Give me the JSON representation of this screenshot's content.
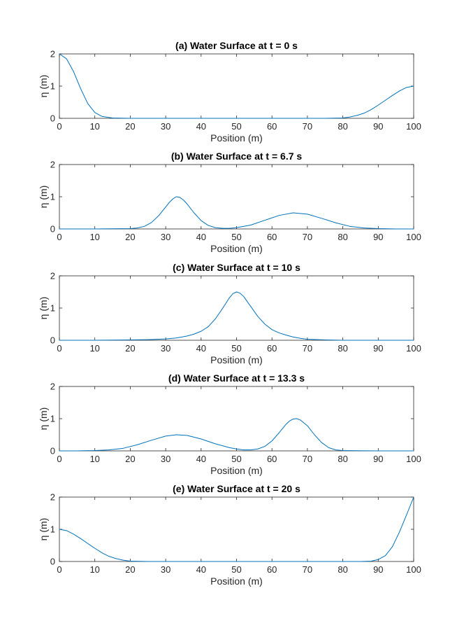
{
  "colors": {
    "line": "#0072BD",
    "axis": "#262626",
    "background": "#ffffff"
  },
  "chart_data": [
    {
      "type": "line",
      "title": "(a) Water Surface at t = 0 s",
      "xlabel": "Position (m)",
      "ylabel": "η (m)",
      "xlim": [
        0,
        100
      ],
      "ylim": [
        0,
        2
      ],
      "xticks": [
        0,
        10,
        20,
        30,
        40,
        50,
        60,
        70,
        80,
        90,
        100
      ],
      "xtick_labels": [
        "0",
        "10",
        "20",
        "30",
        "40",
        "50",
        "60",
        "70",
        "80",
        "90",
        "100"
      ],
      "yticks": [
        0,
        1,
        2
      ],
      "ytick_labels": [
        "0",
        "1",
        "2"
      ],
      "grid": false,
      "series": [
        {
          "x": [
            0,
            2,
            4,
            6,
            8,
            10,
            12,
            15,
            20,
            30,
            40,
            50,
            60,
            70,
            75,
            80,
            82,
            84,
            86,
            88,
            90,
            92,
            94,
            96,
            98,
            100
          ],
          "y": [
            2.0,
            1.85,
            1.45,
            0.92,
            0.46,
            0.18,
            0.06,
            0.01,
            0,
            0,
            0,
            0,
            0,
            0,
            0,
            0.01,
            0.04,
            0.09,
            0.16,
            0.27,
            0.41,
            0.56,
            0.71,
            0.85,
            0.96,
            1.0
          ]
        }
      ]
    },
    {
      "type": "line",
      "title": "(b) Water Surface at t = 6.7 s",
      "xlabel": "Position (m)",
      "ylabel": "η (m)",
      "xlim": [
        0,
        100
      ],
      "ylim": [
        0,
        2
      ],
      "xticks": [
        0,
        10,
        20,
        30,
        40,
        50,
        60,
        70,
        80,
        90,
        100
      ],
      "xtick_labels": [
        "0",
        "10",
        "20",
        "30",
        "40",
        "50",
        "60",
        "70",
        "80",
        "90",
        "100"
      ],
      "yticks": [
        0,
        1,
        2
      ],
      "ytick_labels": [
        "0",
        "1",
        "2"
      ],
      "grid": false,
      "series": [
        {
          "x": [
            0,
            10,
            20,
            22,
            24,
            26,
            28,
            30,
            31,
            32,
            33,
            34,
            35,
            36,
            38,
            40,
            42,
            44,
            46,
            48,
            50,
            54,
            58,
            62,
            66,
            70,
            74,
            78,
            82,
            86,
            90,
            95,
            100
          ],
          "y": [
            0,
            0,
            0.01,
            0.03,
            0.08,
            0.2,
            0.41,
            0.68,
            0.82,
            0.93,
            1.0,
            0.98,
            0.9,
            0.78,
            0.5,
            0.26,
            0.11,
            0.04,
            0.02,
            0.02,
            0.04,
            0.12,
            0.27,
            0.42,
            0.5,
            0.46,
            0.33,
            0.19,
            0.08,
            0.03,
            0.01,
            0,
            0
          ]
        }
      ]
    },
    {
      "type": "line",
      "title": "(c) Water Surface at t = 10 s",
      "xlabel": "Position (m)",
      "ylabel": "η (m)",
      "xlim": [
        0,
        100
      ],
      "ylim": [
        0,
        2
      ],
      "xticks": [
        0,
        10,
        20,
        30,
        40,
        50,
        60,
        70,
        80,
        90,
        100
      ],
      "xtick_labels": [
        "0",
        "10",
        "20",
        "30",
        "40",
        "50",
        "60",
        "70",
        "80",
        "90",
        "100"
      ],
      "yticks": [
        0,
        1,
        2
      ],
      "ytick_labels": [
        "0",
        "1",
        "2"
      ],
      "grid": false,
      "series": [
        {
          "x": [
            0,
            10,
            20,
            25,
            30,
            33,
            36,
            38,
            40,
            42,
            44,
            46,
            48,
            49,
            50,
            51,
            52,
            54,
            56,
            58,
            60,
            62,
            64,
            66,
            68,
            70,
            75,
            80,
            90,
            100
          ],
          "y": [
            0,
            0,
            0.01,
            0.02,
            0.04,
            0.07,
            0.13,
            0.19,
            0.28,
            0.42,
            0.66,
            0.98,
            1.32,
            1.45,
            1.5,
            1.46,
            1.36,
            1.05,
            0.74,
            0.5,
            0.33,
            0.23,
            0.16,
            0.1,
            0.06,
            0.03,
            0.01,
            0,
            0,
            0
          ]
        }
      ]
    },
    {
      "type": "line",
      "title": "(d) Water Surface at t = 13.3 s",
      "xlabel": "Position (m)",
      "ylabel": "η (m)",
      "xlim": [
        0,
        100
      ],
      "ylim": [
        0,
        2
      ],
      "xticks": [
        0,
        10,
        20,
        30,
        40,
        50,
        60,
        70,
        80,
        90,
        100
      ],
      "xtick_labels": [
        "0",
        "10",
        "20",
        "30",
        "40",
        "50",
        "60",
        "70",
        "80",
        "90",
        "100"
      ],
      "yticks": [
        0,
        1,
        2
      ],
      "ytick_labels": [
        "0",
        "1",
        "2"
      ],
      "grid": false,
      "series": [
        {
          "x": [
            0,
            5,
            10,
            14,
            18,
            22,
            26,
            30,
            33,
            36,
            40,
            44,
            48,
            50,
            52,
            54,
            56,
            58,
            60,
            62,
            64,
            65,
            66,
            67,
            68,
            70,
            72,
            74,
            76,
            78,
            80,
            90,
            100
          ],
          "y": [
            0,
            0,
            0.01,
            0.03,
            0.08,
            0.19,
            0.33,
            0.46,
            0.5,
            0.48,
            0.37,
            0.22,
            0.1,
            0.06,
            0.03,
            0.03,
            0.06,
            0.14,
            0.31,
            0.56,
            0.83,
            0.93,
            0.99,
            1.0,
            0.96,
            0.78,
            0.5,
            0.26,
            0.1,
            0.03,
            0.01,
            0,
            0
          ]
        }
      ]
    },
    {
      "type": "line",
      "title": "(e) Water Surface at t = 20 s",
      "xlabel": "Position (m)",
      "ylabel": "η (m)",
      "xlim": [
        0,
        100
      ],
      "ylim": [
        0,
        2
      ],
      "xticks": [
        0,
        10,
        20,
        30,
        40,
        50,
        60,
        70,
        80,
        90,
        100
      ],
      "xtick_labels": [
        "0",
        "10",
        "20",
        "30",
        "40",
        "50",
        "60",
        "70",
        "80",
        "90",
        "100"
      ],
      "yticks": [
        0,
        1,
        2
      ],
      "ytick_labels": [
        "0",
        "1",
        "2"
      ],
      "grid": false,
      "series": [
        {
          "x": [
            0,
            2,
            4,
            6,
            8,
            10,
            12,
            14,
            16,
            18,
            20,
            25,
            30,
            40,
            50,
            60,
            70,
            80,
            85,
            88,
            90,
            92,
            94,
            96,
            98,
            100
          ],
          "y": [
            1.0,
            0.96,
            0.85,
            0.71,
            0.56,
            0.41,
            0.27,
            0.16,
            0.09,
            0.04,
            0.01,
            0,
            0,
            0,
            0,
            0,
            0,
            0,
            0,
            0.01,
            0.06,
            0.18,
            0.46,
            0.92,
            1.45,
            2.0
          ]
        }
      ]
    }
  ]
}
